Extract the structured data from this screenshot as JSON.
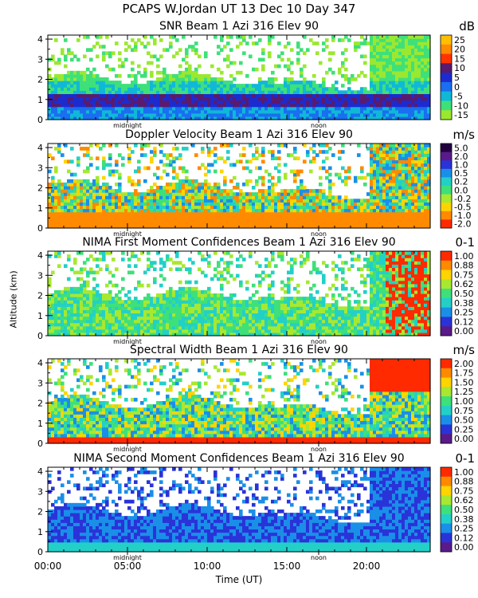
{
  "figure": {
    "header": "PCAPS W.Jordan UT  13 Dec 10 Day 347",
    "x_axis_title": "Time (UT)",
    "y_axis_title": "Altitude (km)",
    "x_tick_labels": [
      "00:00",
      "05:00",
      "10:00",
      "15:00",
      "20:00"
    ],
    "x_markers": [
      {
        "label": "midnight",
        "hour": 5.0
      },
      {
        "label": "noon",
        "hour": 17.0
      }
    ],
    "ylim": [
      0,
      4.2
    ],
    "y_tick_labels": [
      "0",
      "1",
      "2",
      "3",
      "4"
    ],
    "xlim_hours": [
      0,
      24
    ]
  },
  "chart_data": [
    {
      "type": "heatmap",
      "title": "SNR Beam 1 Azi 316 Elev 90",
      "unit": "dB",
      "colorbar_labels": [
        "25",
        "20",
        "15",
        "10",
        "5",
        "0",
        "-5",
        "-10",
        "-15"
      ],
      "colorbar_colors": [
        "#ffbf00",
        "#ff8a00",
        "#ff3300",
        "#5a1a6e",
        "#1c2bd0",
        "#1a6ef0",
        "#10b8d8",
        "#3ee07a",
        "#9be830"
      ]
    },
    {
      "type": "heatmap",
      "title": "Doppler Velocity Beam 1 Azi 316 Elev 90",
      "unit": "m/s",
      "colorbar_labels": [
        "5.0",
        "2.0",
        "1.0",
        "0.5",
        "0.2",
        "0.0",
        "-0.2",
        "-0.5",
        "-1.0",
        "-2.0"
      ],
      "colorbar_colors": [
        "#200040",
        "#5a1a8a",
        "#2a33d8",
        "#1a8fe8",
        "#22d0c8",
        "#3ee07a",
        "#a8e830",
        "#ffd400",
        "#ff8a00",
        "#ff2a00"
      ]
    },
    {
      "type": "heatmap",
      "title": "NIMA First Moment Confidences Beam 1 Azi 316 Elev 90",
      "unit": "0-1",
      "colorbar_labels": [
        "1.00",
        "0.88",
        "0.75",
        "0.62",
        "0.50",
        "0.38",
        "0.25",
        "0.12",
        "0.00"
      ],
      "colorbar_colors": [
        "#ff2a00",
        "#ff8a00",
        "#ffd400",
        "#a8e830",
        "#3ee07a",
        "#22d0c8",
        "#1a8fe8",
        "#2a33d8",
        "#5a1a8a"
      ]
    },
    {
      "type": "heatmap",
      "title": "Spectral Width Beam 1 Azi 316 Elev 90",
      "unit": "m/s",
      "colorbar_labels": [
        "2.00",
        "1.75",
        "1.50",
        "1.25",
        "1.00",
        "0.75",
        "0.50",
        "0.25",
        "0.00"
      ],
      "colorbar_colors": [
        "#ff2a00",
        "#ff8a00",
        "#ffd400",
        "#a8e830",
        "#3ee07a",
        "#22d0c8",
        "#1a8fe8",
        "#2a33d8",
        "#5a1a8a"
      ]
    },
    {
      "type": "heatmap",
      "title": "NIMA Second Moment Confidences Beam 1 Azi 316 Elev 90",
      "unit": "0-1",
      "colorbar_labels": [
        "1.00",
        "0.88",
        "0.75",
        "0.62",
        "0.50",
        "0.38",
        "0.25",
        "0.12",
        "0.00"
      ],
      "colorbar_colors": [
        "#ff2a00",
        "#ff8a00",
        "#ffd400",
        "#a8e830",
        "#3ee07a",
        "#22d0c8",
        "#1a8fe8",
        "#2a33d8",
        "#5a1a8a"
      ]
    }
  ]
}
